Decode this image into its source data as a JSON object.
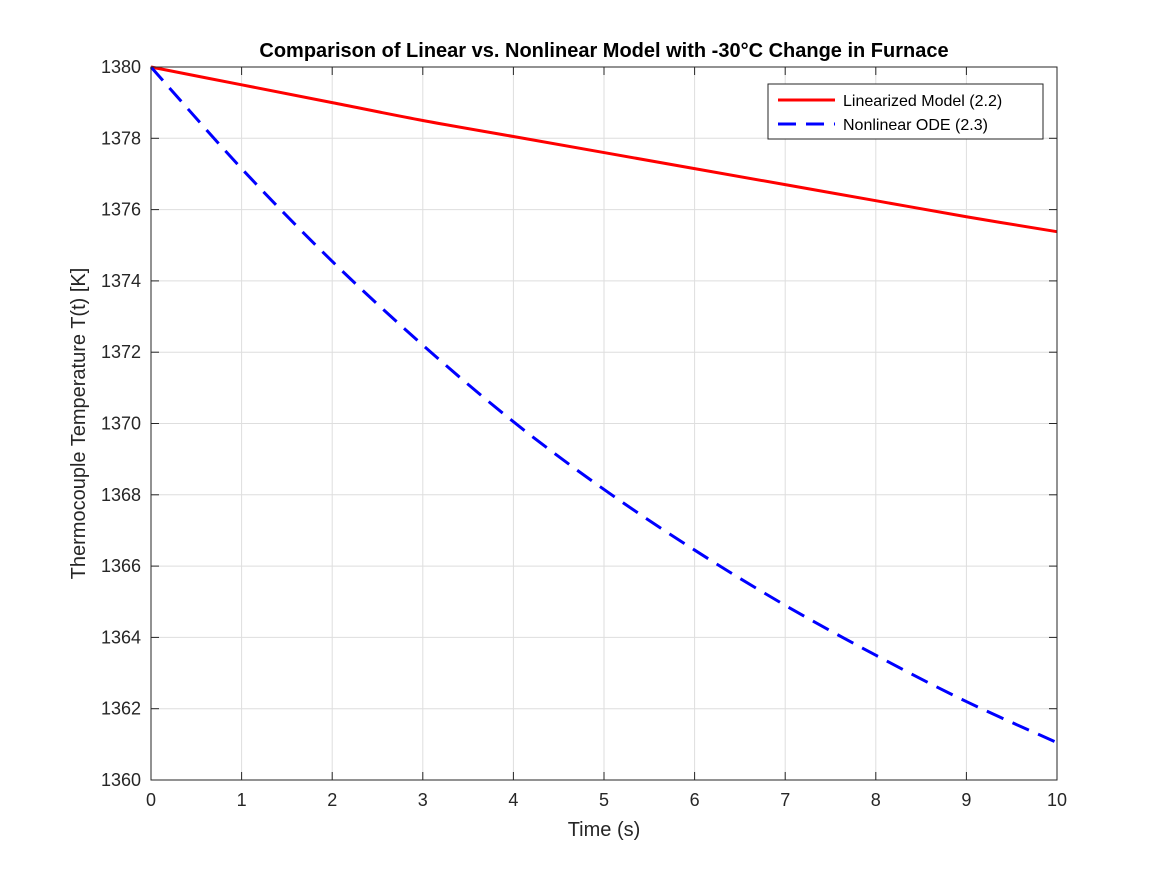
{
  "chart_data": {
    "type": "line",
    "title": "Comparison of Linear vs. Nonlinear Model with -30°C Change in Furnace",
    "xlabel": "Time (s)",
    "ylabel": "Thermocouple Temperature T(t) [K]",
    "xlim": [
      0,
      10
    ],
    "ylim": [
      1360,
      1380
    ],
    "xticks": [
      0,
      1,
      2,
      3,
      4,
      5,
      6,
      7,
      8,
      9,
      10
    ],
    "yticks": [
      1360,
      1362,
      1364,
      1366,
      1368,
      1370,
      1372,
      1374,
      1376,
      1378,
      1380
    ],
    "grid": true,
    "legend_position": "top-right",
    "x": [
      0,
      1,
      2,
      3,
      4,
      5,
      6,
      7,
      8,
      9,
      10
    ],
    "series": [
      {
        "name": "Linearized Model (2.2)",
        "color": "#ff0000",
        "style": "solid",
        "values": [
          1380.0,
          1379.5,
          1379.0,
          1378.5,
          1378.05,
          1377.6,
          1377.15,
          1376.7,
          1376.25,
          1375.8,
          1375.38
        ]
      },
      {
        "name": "Nonlinear ODE (2.3)",
        "color": "#0000ff",
        "style": "dashed",
        "values": [
          1380.0,
          1377.15,
          1374.55,
          1372.2,
          1370.05,
          1368.15,
          1366.45,
          1364.9,
          1363.5,
          1362.2,
          1361.05
        ]
      }
    ]
  }
}
